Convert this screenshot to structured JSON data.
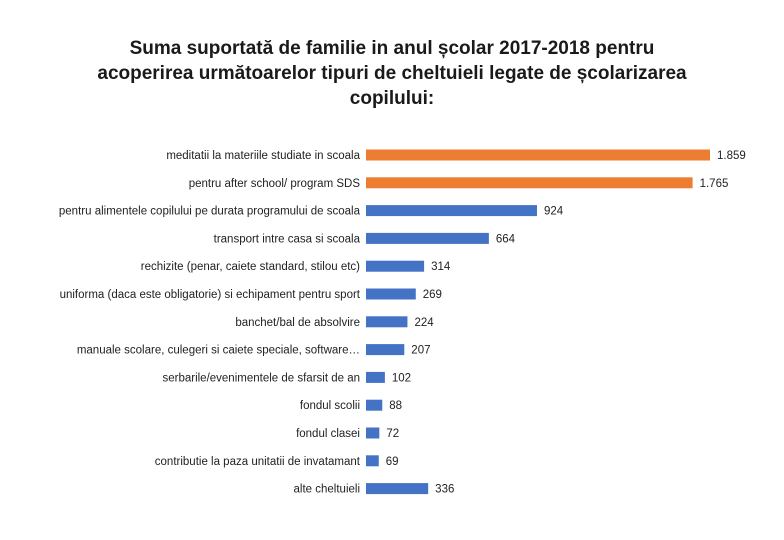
{
  "chart_data": {
    "type": "bar",
    "orientation": "horizontal",
    "title_lines": [
      "Suma suportată de familie in anul școlar 2017-2018 pentru",
      "acoperirea următoarelor tipuri de cheltuieli legate de școlarizarea",
      "copilului:"
    ],
    "categories": [
      "meditatii la materiile studiate in scoala",
      "pentru after school/ program SDS",
      "pentru alimentele copilului pe durata programului de scoala",
      "transport intre casa si scoala",
      "rechizite (penar, caiete standard, stilou etc)",
      "uniforma (daca este obligatorie) si echipament pentru sport",
      "banchet/bal de absolvire",
      "manuale scolare, culegeri si caiete speciale, software…",
      "serbarile/evenimentele de sfarsit de an",
      "fondul scolii",
      "fondul clasei",
      "contributie la paza unitatii de invatamant",
      "alte cheltuieli"
    ],
    "values": [
      1859,
      1765,
      924,
      664,
      314,
      269,
      224,
      207,
      102,
      88,
      72,
      69,
      336
    ],
    "value_labels": [
      "1.859",
      "1.765",
      "924",
      "664",
      "314",
      "269",
      "224",
      "207",
      "102",
      "88",
      "72",
      "69",
      "336"
    ],
    "highlight_count": 2,
    "colors": {
      "highlight": "#ED7D31",
      "default": "#4472C4"
    },
    "grid": false,
    "legend": "none"
  }
}
